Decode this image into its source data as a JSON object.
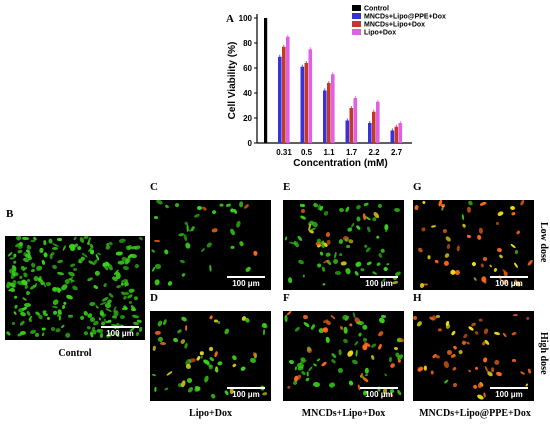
{
  "chart_data": {
    "type": "bar",
    "title": "",
    "xlabel": "Concentration (mM)",
    "ylabel": "Cell Viability (%)",
    "ylim": [
      0,
      100
    ],
    "yticks": [
      "0",
      "20",
      "40",
      "60",
      "80",
      "100"
    ],
    "categories": [
      "0.31",
      "0.5",
      "1.1",
      "1.7",
      "2.2",
      "2.7"
    ],
    "control_value": 100,
    "legend_position": "top-right",
    "series": [
      {
        "name": "Control",
        "color": "#000000",
        "values": [
          null,
          null,
          null,
          null,
          null,
          null
        ]
      },
      {
        "name": "MNCDs+Lipo@PPE+Dox",
        "color": "#3b2fd6",
        "values": [
          69,
          61,
          42,
          18,
          16,
          10
        ]
      },
      {
        "name": "MNCDs+Lipo+Dox",
        "color": "#c0392b",
        "values": [
          77,
          64,
          48,
          28,
          25,
          13
        ]
      },
      {
        "name": "Lipo+Dox",
        "color": "#e15ee6",
        "values": [
          85,
          75,
          55,
          36,
          33,
          16
        ]
      }
    ]
  },
  "figure": {
    "panel_a_letter": "A",
    "panels": {
      "B": {
        "letter": "B",
        "caption": "Control",
        "scale": "100 μm"
      },
      "C": {
        "letter": "C",
        "scale": "100 μm"
      },
      "D": {
        "letter": "D",
        "scale": "100 μm"
      },
      "E": {
        "letter": "E",
        "scale": "100 μm"
      },
      "F": {
        "letter": "F",
        "scale": "100 μm"
      },
      "G": {
        "letter": "G",
        "scale": "100 μm"
      },
      "H": {
        "letter": "H",
        "scale": "100 μm"
      }
    },
    "column_captions": {
      "lipo": "Lipo+Dox",
      "mncds_lipo": "MNCDs+Lipo+Dox",
      "mncds_lipo_ppe": "MNCDs+Lipo@PPE+Dox"
    },
    "row_captions": {
      "low": "Low dose",
      "high": "High dose"
    },
    "colors": {
      "live_cell": "#39d41a",
      "dead_cell": "#ff6a1a",
      "merged_cell": "#f2e21a",
      "background": "#000000"
    }
  }
}
